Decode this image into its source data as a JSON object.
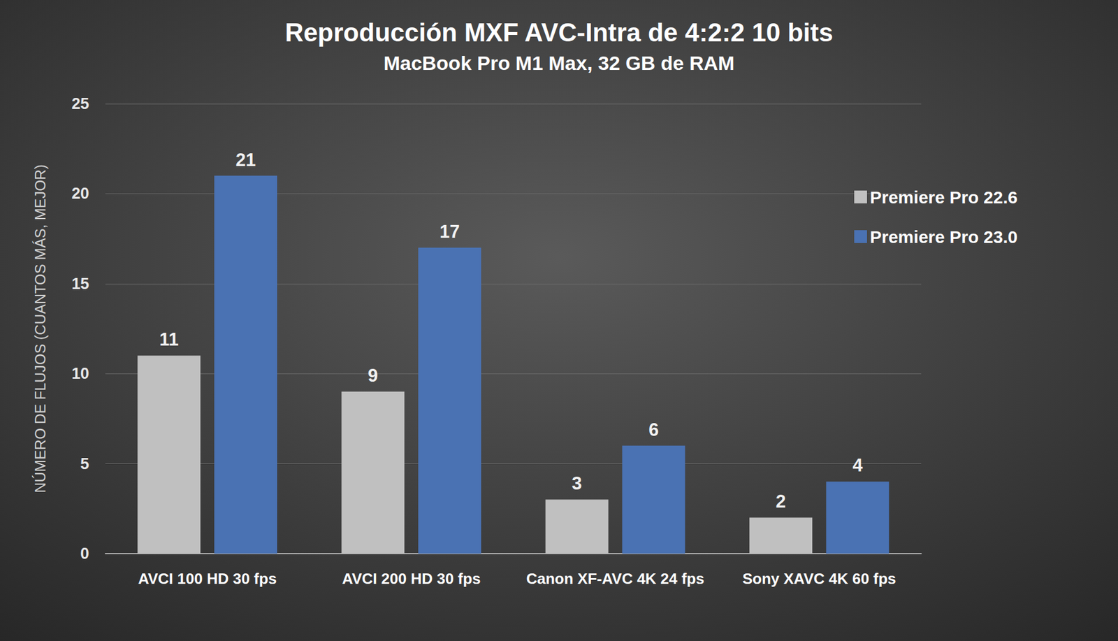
{
  "chart_data": {
    "type": "bar",
    "title": "Reproducción MXF AVC-Intra de 4:2:2 10 bits",
    "subtitle": "MacBook Pro M1 Max, 32 GB de RAM",
    "y_label": "NÚMERO DE FLUJOS (CUANTOS MÁS, MEJOR)",
    "categories": [
      "AVCI 100 HD 30 fps",
      "AVCI 200 HD 30 fps",
      "Canon XF-AVC 4K 24 fps",
      "Sony XAVC 4K 60 fps"
    ],
    "series": [
      {
        "name": "Premiere Pro 22.6",
        "color": "#c0c0c0",
        "values": [
          11,
          9,
          3,
          2
        ]
      },
      {
        "name": "Premiere Pro 23.0",
        "color": "#4a72b3",
        "values": [
          21,
          17,
          6,
          4
        ]
      }
    ],
    "ylim": [
      0,
      25
    ],
    "yticks": [
      0,
      5,
      10,
      15,
      20,
      25
    ],
    "grid": true,
    "data_labels": true,
    "legend": "right"
  }
}
